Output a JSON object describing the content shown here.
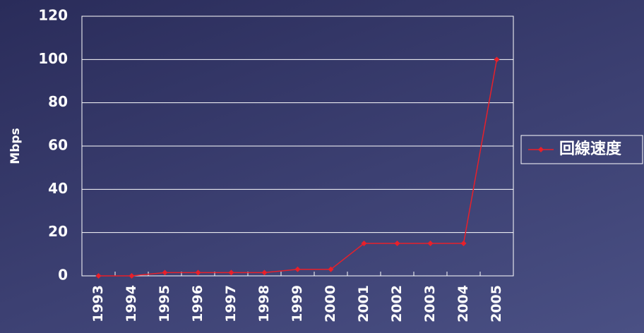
{
  "chart_data": {
    "type": "line",
    "y_label": "Mbps",
    "categories": [
      "1993",
      "1994",
      "1995",
      "1996",
      "1997",
      "1998",
      "1999",
      "2000",
      "2001",
      "2002",
      "2003",
      "2004",
      "2005"
    ],
    "series": [
      {
        "name": "回線速度",
        "color": "#e8202a",
        "values": [
          0,
          0,
          1.5,
          1.5,
          1.5,
          1.5,
          3,
          3,
          15,
          15,
          15,
          15,
          100
        ]
      }
    ],
    "ylim": [
      0,
      120
    ],
    "yticks": [
      0,
      20,
      40,
      60,
      80,
      100,
      120
    ],
    "grid": true,
    "legend": "right"
  }
}
